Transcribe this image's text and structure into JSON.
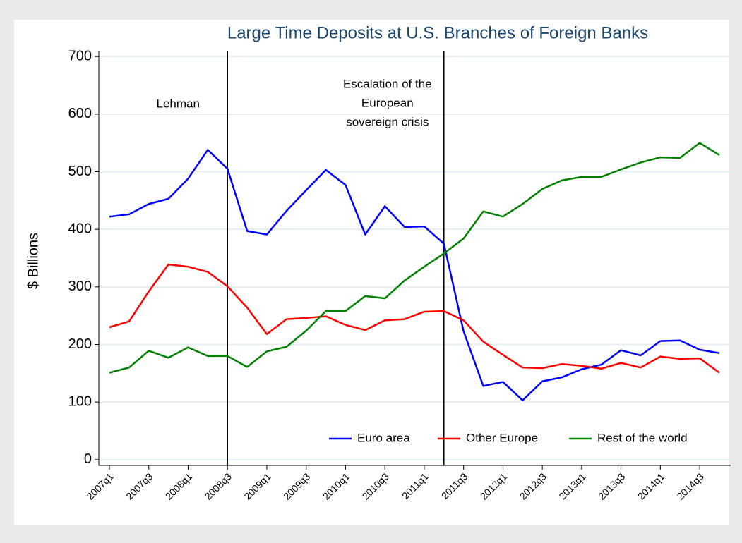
{
  "chart_data": {
    "type": "line",
    "title": "Large Time Deposits at U.S. Branches of Foreign Banks",
    "ylabel": "$ Billions",
    "categories": [
      "2007q1",
      null,
      "2007q3",
      null,
      "2008q1",
      null,
      "2008q3",
      null,
      "2009q1",
      null,
      "2009q3",
      null,
      "2010q1",
      null,
      "2010q3",
      null,
      "2011q1",
      null,
      "2011q3",
      null,
      "2012q1",
      null,
      "2012q3",
      null,
      "2013q1",
      null,
      "2013q3",
      null,
      "2014q1",
      null,
      "2014q3",
      null
    ],
    "series": [
      {
        "name": "Euro area",
        "color": "#0000ff",
        "values": [
          422,
          426,
          444,
          453,
          488,
          538,
          505,
          397,
          391,
          432,
          468,
          503,
          477,
          391,
          440,
          404,
          405,
          375,
          223,
          128,
          135,
          103,
          136,
          143,
          157,
          165,
          190,
          181,
          206,
          207,
          191,
          185
        ]
      },
      {
        "name": "Other Europe",
        "color": "#ff0000",
        "values": [
          230,
          240,
          292,
          339,
          335,
          326,
          301,
          264,
          218,
          244,
          246,
          249,
          234,
          225,
          242,
          244,
          257,
          258,
          242,
          205,
          182,
          160,
          159,
          166,
          163,
          158,
          168,
          160,
          179,
          175,
          176,
          151
        ]
      },
      {
        "name": "Rest of the world",
        "color": "#008000",
        "values": [
          151,
          160,
          189,
          177,
          195,
          180,
          180,
          161,
          188,
          196,
          224,
          258,
          258,
          284,
          280,
          311,
          335,
          358,
          384,
          431,
          422,
          444,
          470,
          485,
          491,
          491,
          504,
          516,
          525,
          524,
          550,
          529
        ]
      }
    ],
    "annotations": [
      {
        "x": 6,
        "lines": [
          "Lehman"
        ]
      },
      {
        "x": 17,
        "lines": [
          "Escalation of the",
          "European",
          "sovereign crisis"
        ]
      }
    ],
    "ylim": [
      -10,
      710
    ],
    "yticks": [
      0,
      100,
      200,
      300,
      400,
      500,
      600,
      700
    ],
    "grid": true,
    "legend": "bottom-right"
  }
}
